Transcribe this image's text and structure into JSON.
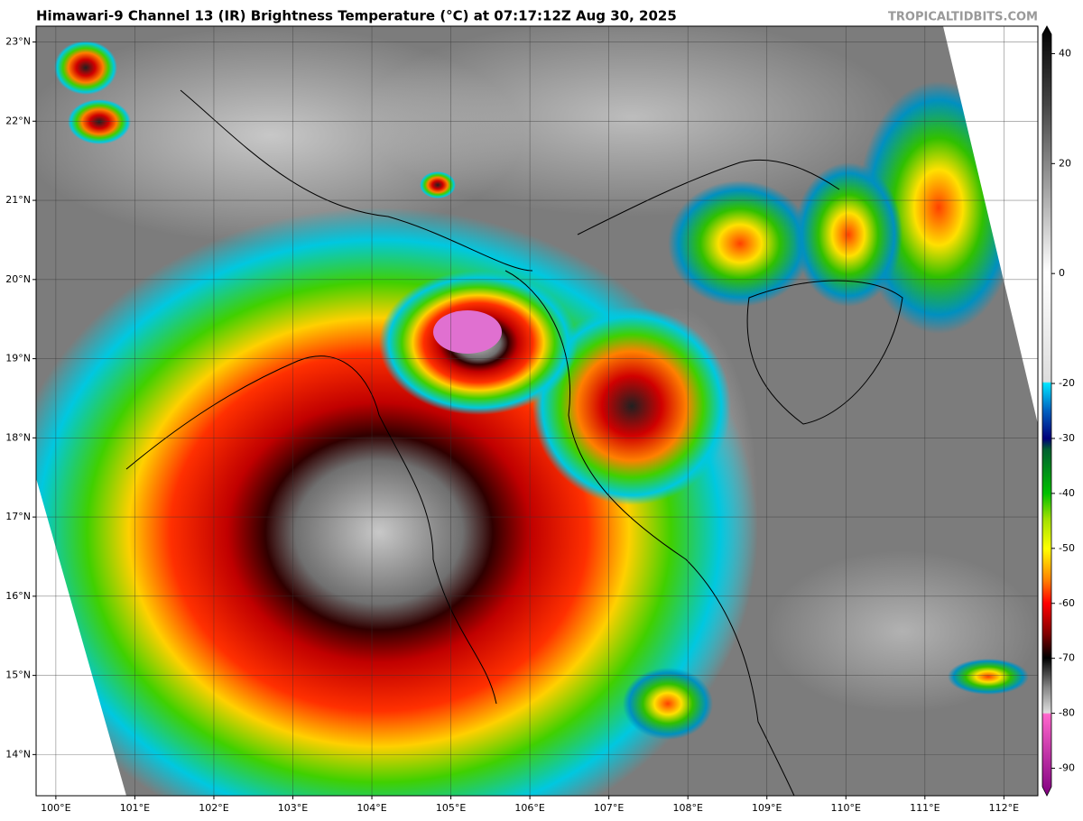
{
  "header": {
    "title": "Himawari-9 Channel 13 (IR) Brightness Temperature (°C) at 07:17:12Z Aug 30, 2025",
    "watermark": "TROPICALTIDBITS.COM"
  },
  "map": {
    "lon_range": [
      99.75,
      112.43
    ],
    "lat_range": [
      13.48,
      23.2
    ],
    "lon_ticks": [
      {
        "value": 100,
        "label": "100°E"
      },
      {
        "value": 101,
        "label": "101°E"
      },
      {
        "value": 102,
        "label": "102°E"
      },
      {
        "value": 103,
        "label": "103°E"
      },
      {
        "value": 104,
        "label": "104°E"
      },
      {
        "value": 105,
        "label": "105°E"
      },
      {
        "value": 106,
        "label": "106°E"
      },
      {
        "value": 107,
        "label": "107°E"
      },
      {
        "value": 108,
        "label": "108°E"
      },
      {
        "value": 109,
        "label": "109°E"
      },
      {
        "value": 110,
        "label": "110°E"
      },
      {
        "value": 111,
        "label": "111°E"
      },
      {
        "value": 112,
        "label": "112°E"
      }
    ],
    "lat_ticks": [
      {
        "value": 14,
        "label": "14°N"
      },
      {
        "value": 15,
        "label": "15°N"
      },
      {
        "value": 16,
        "label": "16°N"
      },
      {
        "value": 17,
        "label": "17°N"
      },
      {
        "value": 18,
        "label": "18°N"
      },
      {
        "value": 19,
        "label": "19°N"
      },
      {
        "value": 20,
        "label": "20°N"
      },
      {
        "value": 21,
        "label": "21°N"
      },
      {
        "value": 22,
        "label": "22°N"
      },
      {
        "value": 23,
        "label": "23°N"
      }
    ]
  },
  "colorbar": {
    "range": [
      -95,
      45
    ],
    "ticks": [
      40,
      20,
      0,
      -20,
      -30,
      -40,
      -50,
      -60,
      -70,
      -80,
      -90
    ]
  }
}
